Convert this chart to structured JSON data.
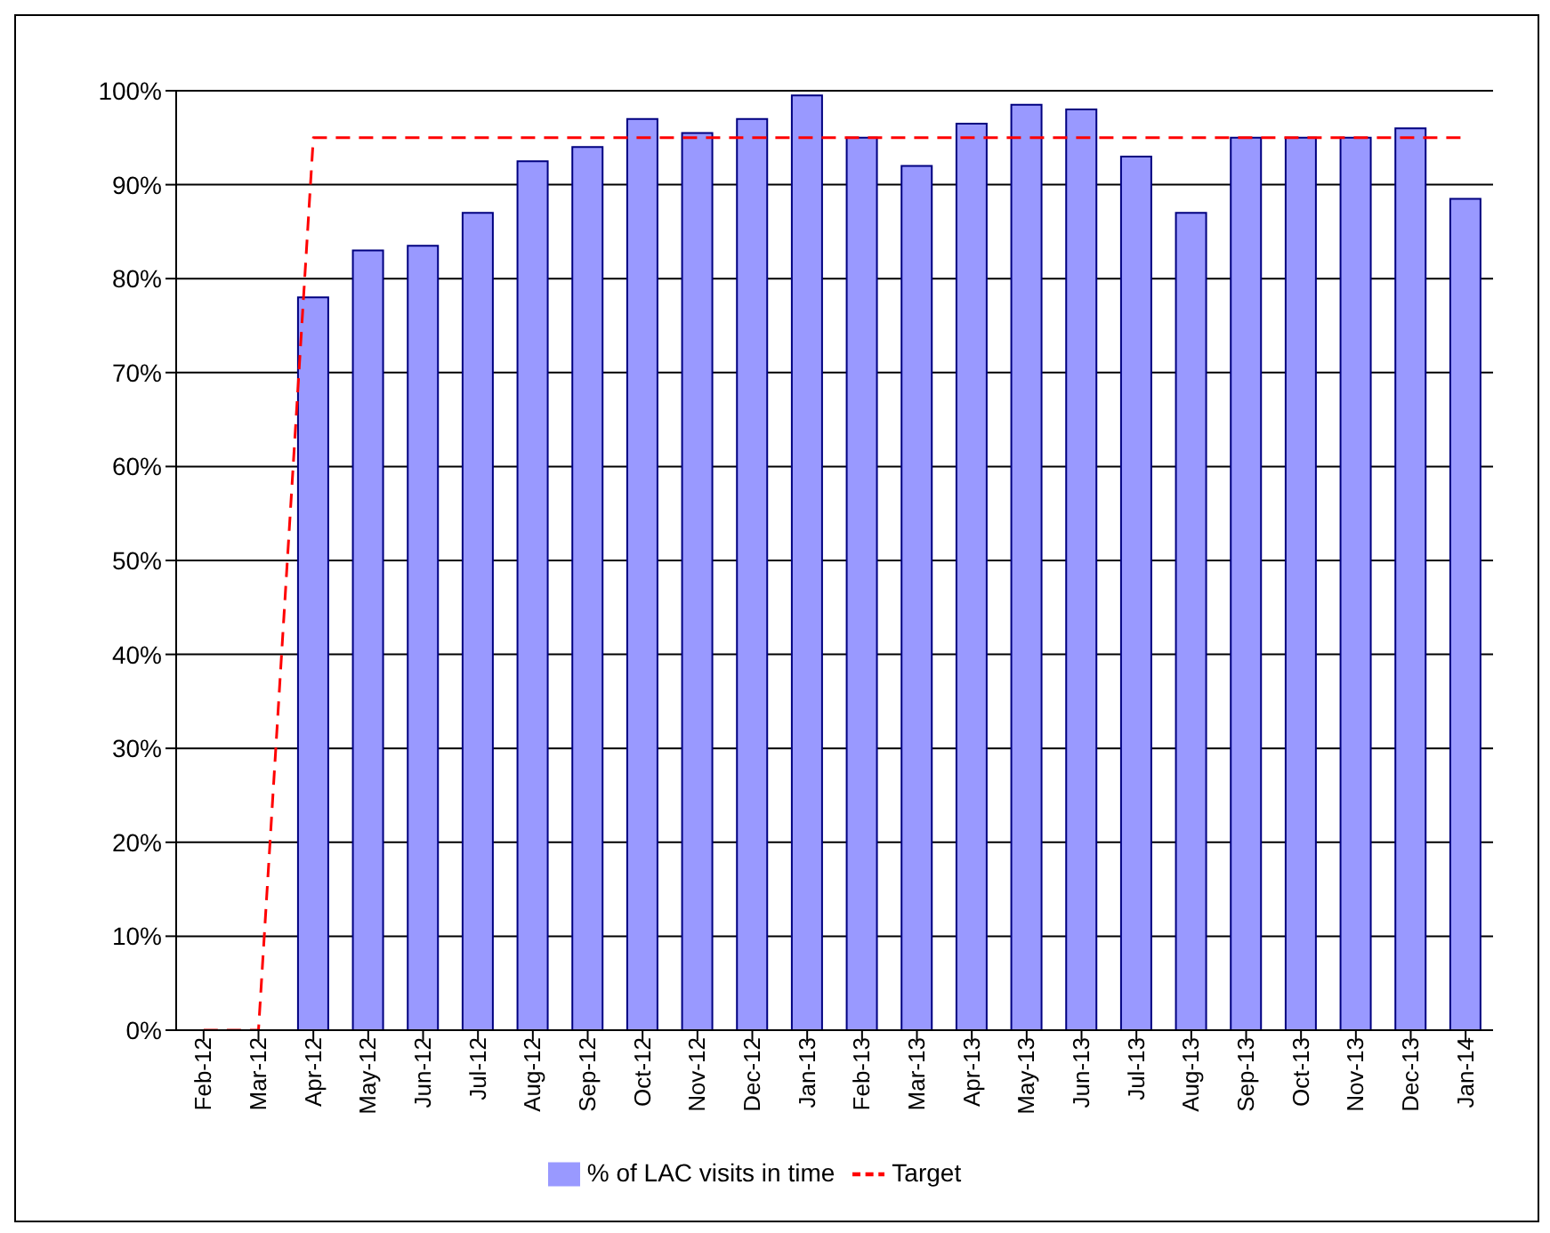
{
  "chart_data": {
    "type": "bar",
    "categories": [
      "Feb-12",
      "Mar-12",
      "Apr-12",
      "May-12",
      "Jun-12",
      "Jul-12",
      "Aug-12",
      "Sep-12",
      "Oct-12",
      "Nov-12",
      "Dec-12",
      "Jan-13",
      "Feb-13",
      "Mar-13",
      "Apr-13",
      "May-13",
      "Jun-13",
      "Jul-13",
      "Aug-13",
      "Sep-13",
      "Oct-13",
      "Nov-13",
      "Dec-13",
      "Jan-14"
    ],
    "series": [
      {
        "name": "% of LAC visits in time",
        "color": "#9999ff",
        "values": [
          null,
          null,
          78,
          83,
          83.5,
          87,
          92.5,
          94,
          97,
          95.5,
          97,
          99.5,
          95,
          92,
          96.5,
          98.5,
          98,
          93,
          87,
          95,
          95,
          95,
          96,
          88.5
        ]
      },
      {
        "name": "Target",
        "type": "line",
        "color": "#ff0000",
        "line_style": "dashed",
        "marker": "none",
        "values": [
          0,
          0,
          95,
          95,
          95,
          95,
          95,
          95,
          95,
          95,
          95,
          95,
          95,
          95,
          95,
          95,
          95,
          95,
          95,
          95,
          95,
          95,
          95,
          95
        ]
      }
    ],
    "ylim": [
      0,
      100
    ],
    "yticks": [
      {
        "value": 0,
        "label": "0%"
      },
      {
        "value": 10,
        "label": "10%"
      },
      {
        "value": 20,
        "label": "20%"
      },
      {
        "value": 30,
        "label": "30%"
      },
      {
        "value": 40,
        "label": "40%"
      },
      {
        "value": 50,
        "label": "50%"
      },
      {
        "value": 60,
        "label": "60%"
      },
      {
        "value": 70,
        "label": "70%"
      },
      {
        "value": 80,
        "label": "80%"
      },
      {
        "value": 90,
        "label": "90%"
      },
      {
        "value": 100,
        "label": "100%"
      }
    ],
    "grid": "y",
    "legend": "bottom"
  }
}
